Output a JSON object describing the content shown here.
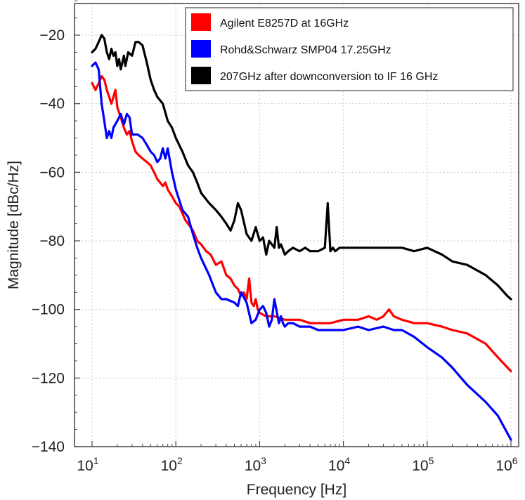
{
  "chart_data": {
    "type": "line",
    "xscale": "log",
    "xlabel": "Frequency [Hz]",
    "ylabel": "Magnitude [dBc/Hz]",
    "xlim": [
      10,
      1000000
    ],
    "ylim": [
      -140,
      -10
    ],
    "grid": true,
    "legend_position": "top-right",
    "xticks": [
      {
        "base": "10",
        "exp": "1",
        "value": 10
      },
      {
        "base": "10",
        "exp": "2",
        "value": 100
      },
      {
        "base": "10",
        "exp": "3",
        "value": 1000
      },
      {
        "base": "10",
        "exp": "4",
        "value": 10000
      },
      {
        "base": "10",
        "exp": "5",
        "value": 100000
      },
      {
        "base": "10",
        "exp": "6",
        "value": 1000000
      }
    ],
    "yticks": [
      "-20",
      "-40",
      "-60",
      "-80",
      "-100",
      "-120",
      "-140"
    ],
    "series": [
      {
        "name": "Agilent E8257D at 16GHz",
        "color": "#ff0000",
        "x": [
          10,
          11,
          12,
          13,
          14,
          15,
          16,
          17,
          18,
          19,
          20,
          22,
          24,
          26,
          28,
          30,
          33,
          36,
          40,
          45,
          50,
          55,
          60,
          65,
          70,
          75,
          80,
          90,
          100,
          110,
          120,
          130,
          140,
          160,
          180,
          200,
          230,
          260,
          300,
          350,
          400,
          450,
          500,
          550,
          600,
          650,
          700,
          750,
          800,
          850,
          900,
          950,
          1000,
          1200,
          1500,
          2000,
          3000,
          4000,
          5000,
          7000,
          10000,
          15000,
          20000,
          25000,
          30000,
          35000,
          40000,
          50000,
          70000,
          100000,
          150000,
          200000,
          300000,
          500000,
          700000,
          1000000
        ],
        "y": [
          -34,
          -36,
          -34,
          -32,
          -33,
          -36,
          -38,
          -40,
          -38,
          -36,
          -41,
          -44,
          -47,
          -49,
          -48,
          -51,
          -54,
          -55,
          -56,
          -57,
          -58,
          -60,
          -62,
          -63,
          -64,
          -63,
          -65,
          -67,
          -69,
          -70,
          -72,
          -74,
          -75,
          -77,
          -80,
          -81,
          -83,
          -84,
          -87,
          -86,
          -90,
          -91,
          -93,
          -94,
          -96,
          -95,
          -97,
          -91,
          -98,
          -99,
          -97,
          -100,
          -101,
          -102,
          -102,
          -103,
          -103,
          -104,
          -104,
          -104,
          -103,
          -103,
          -102,
          -103,
          -102,
          -100,
          -102,
          -103,
          -104,
          -104,
          -105,
          -106,
          -107,
          -110,
          -114,
          -118
        ]
      },
      {
        "name": "Rohd&Schwarz SMP04 17.25GHz",
        "color": "#0000ff",
        "x": [
          10,
          11,
          12,
          13,
          14,
          15,
          16,
          17,
          18,
          20,
          22,
          24,
          26,
          28,
          30,
          35,
          40,
          45,
          50,
          55,
          60,
          65,
          70,
          75,
          80,
          90,
          100,
          120,
          140,
          160,
          180,
          200,
          250,
          300,
          350,
          400,
          500,
          550,
          600,
          700,
          800,
          900,
          1000,
          1100,
          1200,
          1300,
          1400,
          1500,
          1700,
          1800,
          1900,
          2000,
          2200,
          2500,
          3000,
          4000,
          5000,
          7000,
          10000,
          15000,
          20000,
          30000,
          40000,
          50000,
          70000,
          100000,
          150000,
          200000,
          300000,
          500000,
          700000,
          1000000
        ],
        "y": [
          -29,
          -28,
          -30,
          -40,
          -45,
          -50,
          -48,
          -50,
          -47,
          -45,
          -43,
          -46,
          -43,
          -44,
          -49,
          -49,
          -50,
          -52,
          -54,
          -55,
          -57,
          -56,
          -53,
          -56,
          -53,
          -60,
          -65,
          -71,
          -73,
          -78,
          -82,
          -85,
          -90,
          -95,
          -97,
          -97,
          -98,
          -99,
          -95,
          -98,
          -104,
          -103,
          -100,
          -99,
          -101,
          -105,
          -103,
          -97,
          -104,
          -102,
          -104,
          -105,
          -104,
          -104,
          -105,
          -105,
          -106,
          -106,
          -106,
          -105,
          -106,
          -105,
          -106,
          -106,
          -108,
          -111,
          -114,
          -117,
          -122,
          -127,
          -131,
          -138
        ]
      },
      {
        "name": "207GHz after downconversion to IF 16 GHz",
        "color": "#000000",
        "x": [
          10,
          11,
          12,
          13,
          14,
          15,
          16,
          17,
          18,
          19,
          20,
          21,
          22,
          23,
          24,
          25,
          27,
          30,
          33,
          36,
          40,
          45,
          50,
          55,
          60,
          70,
          80,
          90,
          100,
          120,
          140,
          160,
          180,
          200,
          250,
          300,
          350,
          400,
          450,
          500,
          550,
          600,
          700,
          800,
          900,
          1000,
          1100,
          1200,
          1300,
          1500,
          1600,
          1700,
          1800,
          2000,
          2200,
          2500,
          3000,
          3500,
          4000,
          5000,
          6000,
          6500,
          7000,
          7500,
          8000,
          9000,
          10000,
          15000,
          20000,
          30000,
          50000,
          70000,
          100000,
          150000,
          200000,
          300000,
          500000,
          700000,
          900000,
          1000000
        ],
        "y": [
          -25,
          -24,
          -22,
          -20,
          -21,
          -25,
          -27,
          -24,
          -26,
          -25,
          -29,
          -27,
          -30,
          -28,
          -26,
          -29,
          -25,
          -26,
          -22,
          -22,
          -23,
          -28,
          -33,
          -36,
          -38,
          -40,
          -45,
          -47,
          -50,
          -54,
          -58,
          -60,
          -63,
          -66,
          -69,
          -71,
          -73,
          -75,
          -77,
          -74,
          -69,
          -71,
          -78,
          -80,
          -76,
          -80,
          -79,
          -84,
          -80,
          -82,
          -76,
          -82,
          -81,
          -84,
          -83,
          -82,
          -83,
          -82,
          -83,
          -83,
          -82,
          -69,
          -83,
          -82,
          -83,
          -82,
          -82,
          -82,
          -82,
          -82,
          -82,
          -83,
          -82,
          -84,
          -86,
          -87,
          -90,
          -93,
          -96,
          -97
        ]
      }
    ]
  }
}
